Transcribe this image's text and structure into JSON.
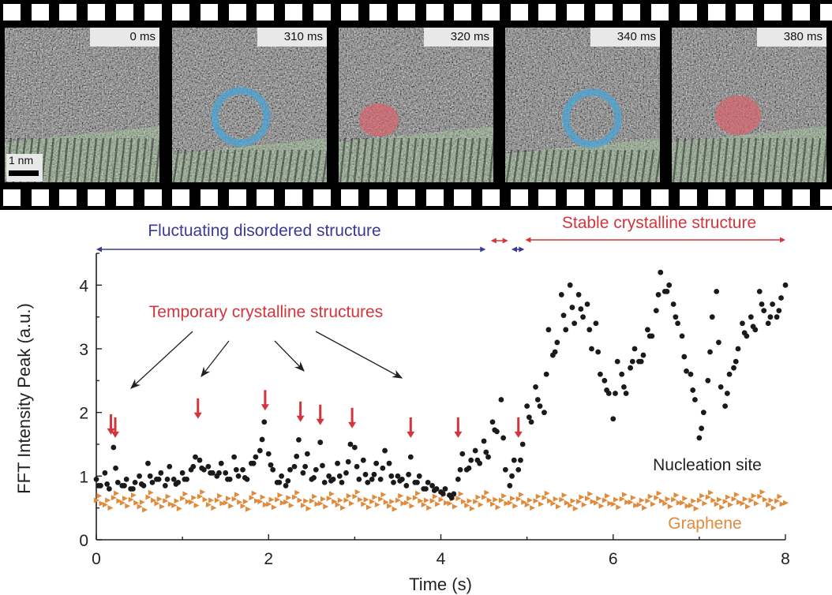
{
  "film_strip": {
    "frames": [
      {
        "label": "0 ms",
        "feature": "none"
      },
      {
        "label": "310 ms",
        "feature": "disordered-ring"
      },
      {
        "label": "320 ms",
        "feature": "crystalline-cluster"
      },
      {
        "label": "340 ms",
        "feature": "disordered-ring"
      },
      {
        "label": "380 ms",
        "feature": "crystalline-cluster"
      }
    ],
    "scale_bar_label": "1 nm",
    "colors": {
      "ring": "#4aa6d6",
      "cluster": "#e0606a",
      "lattice": "#a8d8a0"
    }
  },
  "chart_data": {
    "type": "scatter",
    "xlabel": "Time (s)",
    "ylabel": "FFT Intensity Peak (a.u.)",
    "xlim": [
      0,
      8
    ],
    "ylim": [
      0,
      4.5
    ],
    "xticks": [
      "0",
      "2",
      "4",
      "6",
      "8"
    ],
    "yticks": [
      "0",
      "1",
      "2",
      "3",
      "4"
    ],
    "grid": false,
    "series": [
      {
        "name": "Nucleation site",
        "color": "#1a1a1a",
        "marker": "circle",
        "points": [
          [
            0.0,
            0.95
          ],
          [
            0.05,
            0.85
          ],
          [
            0.1,
            1.05
          ],
          [
            0.15,
            0.8
          ],
          [
            0.2,
            1.45
          ],
          [
            0.25,
            0.9
          ],
          [
            0.3,
            0.85
          ],
          [
            0.35,
            0.95
          ],
          [
            0.4,
            0.8
          ],
          [
            0.45,
            0.9
          ],
          [
            0.5,
            1.0
          ],
          [
            0.55,
            0.85
          ],
          [
            0.6,
            1.2
          ],
          [
            0.65,
            0.9
          ],
          [
            0.7,
            0.95
          ],
          [
            0.75,
            1.05
          ],
          [
            0.8,
            0.85
          ],
          [
            0.85,
            1.15
          ],
          [
            0.9,
            0.95
          ],
          [
            0.95,
            0.9
          ],
          [
            1.0,
            1.05
          ],
          [
            1.05,
            0.95
          ],
          [
            1.1,
            1.1
          ],
          [
            1.15,
            1.3
          ],
          [
            1.2,
            1.25
          ],
          [
            1.25,
            1.1
          ],
          [
            1.3,
            1.15
          ],
          [
            1.35,
            1.05
          ],
          [
            1.4,
            1.0
          ],
          [
            1.45,
            1.2
          ],
          [
            1.5,
            1.05
          ],
          [
            1.55,
            0.95
          ],
          [
            1.6,
            1.3
          ],
          [
            1.65,
            1.0
          ],
          [
            1.7,
            1.1
          ],
          [
            1.75,
            0.95
          ],
          [
            1.8,
            1.2
          ],
          [
            1.85,
            1.3
          ],
          [
            1.9,
            1.4
          ],
          [
            1.95,
            1.85
          ],
          [
            2.0,
            1.35
          ],
          [
            2.05,
            1.1
          ],
          [
            2.1,
            0.9
          ],
          [
            2.15,
            1.0
          ],
          [
            2.2,
            0.85
          ],
          [
            2.25,
            1.1
          ],
          [
            2.3,
            1.15
          ],
          [
            2.35,
            1.57
          ],
          [
            2.4,
            1.05
          ],
          [
            2.45,
            1.35
          ],
          [
            2.5,
            0.95
          ],
          [
            2.55,
            1.1
          ],
          [
            2.6,
            1.53
          ],
          [
            2.65,
            0.9
          ],
          [
            2.7,
            1.0
          ],
          [
            2.75,
            0.95
          ],
          [
            2.8,
            1.2
          ],
          [
            2.85,
            0.9
          ],
          [
            2.9,
            1.05
          ],
          [
            2.95,
            1.5
          ],
          [
            3.0,
            1.45
          ],
          [
            3.05,
            0.95
          ],
          [
            3.1,
            1.25
          ],
          [
            3.15,
            0.9
          ],
          [
            3.2,
            0.95
          ],
          [
            3.25,
            1.2
          ],
          [
            3.3,
            0.95
          ],
          [
            3.35,
            1.4
          ],
          [
            3.4,
            1.2
          ],
          [
            3.45,
            0.9
          ],
          [
            3.5,
            1.0
          ],
          [
            3.55,
            0.95
          ],
          [
            3.6,
            0.85
          ],
          [
            3.65,
            1.3
          ],
          [
            3.7,
            0.9
          ],
          [
            3.75,
            1.0
          ],
          [
            3.8,
            0.8
          ],
          [
            3.85,
            0.9
          ],
          [
            3.9,
            0.85
          ],
          [
            3.95,
            0.8
          ],
          [
            4.0,
            0.75
          ],
          [
            4.05,
            0.8
          ],
          [
            4.1,
            0.7
          ],
          [
            4.15,
            0.72
          ],
          [
            4.2,
            0.95
          ],
          [
            4.25,
            1.35
          ],
          [
            4.3,
            1.1
          ],
          [
            4.35,
            1.25
          ],
          [
            4.4,
            1.4
          ],
          [
            4.45,
            1.2
          ],
          [
            4.5,
            1.55
          ],
          [
            4.55,
            1.3
          ],
          [
            4.6,
            1.85
          ],
          [
            4.65,
            1.7
          ],
          [
            4.7,
            2.2
          ],
          [
            4.75,
            1.1
          ],
          [
            4.8,
            0.85
          ],
          [
            4.85,
            1.25
          ],
          [
            4.9,
            1.1
          ],
          [
            4.95,
            1.5
          ],
          [
            5.0,
            2.1
          ],
          [
            5.05,
            1.85
          ],
          [
            5.1,
            2.4
          ],
          [
            5.15,
            2.1
          ],
          [
            5.2,
            2.0
          ],
          [
            5.25,
            3.3
          ],
          [
            5.3,
            2.9
          ],
          [
            5.35,
            3.1
          ],
          [
            5.4,
            3.85
          ],
          [
            5.45,
            3.3
          ],
          [
            5.5,
            4.0
          ],
          [
            5.55,
            3.4
          ],
          [
            5.6,
            3.85
          ],
          [
            5.65,
            3.5
          ],
          [
            5.7,
            3.7
          ],
          [
            5.75,
            3.0
          ],
          [
            5.8,
            3.4
          ],
          [
            5.85,
            2.6
          ],
          [
            5.9,
            2.5
          ],
          [
            5.95,
            2.3
          ],
          [
            6.0,
            1.9
          ],
          [
            6.05,
            2.8
          ],
          [
            6.1,
            2.6
          ],
          [
            6.15,
            2.3
          ],
          [
            6.2,
            2.7
          ],
          [
            6.25,
            3.0
          ],
          [
            6.3,
            2.8
          ],
          [
            6.35,
            2.9
          ],
          [
            6.4,
            3.3
          ],
          [
            6.45,
            3.2
          ],
          [
            6.5,
            3.6
          ],
          [
            6.55,
            4.2
          ],
          [
            6.6,
            3.9
          ],
          [
            6.65,
            4.0
          ],
          [
            6.7,
            3.7
          ],
          [
            6.75,
            3.4
          ],
          [
            6.8,
            3.2
          ],
          [
            6.85,
            2.65
          ],
          [
            6.9,
            2.6
          ],
          [
            6.95,
            2.2
          ],
          [
            7.0,
            1.6
          ],
          [
            7.05,
            2.0
          ],
          [
            7.1,
            2.5
          ],
          [
            7.15,
            3.5
          ],
          [
            7.2,
            3.9
          ],
          [
            7.25,
            2.4
          ],
          [
            7.3,
            2.1
          ],
          [
            7.35,
            2.6
          ],
          [
            7.4,
            2.7
          ],
          [
            7.45,
            3.0
          ],
          [
            7.5,
            3.4
          ],
          [
            7.55,
            3.2
          ],
          [
            7.6,
            3.5
          ],
          [
            7.65,
            3.3
          ],
          [
            7.7,
            3.9
          ],
          [
            7.75,
            3.6
          ],
          [
            7.8,
            3.4
          ],
          [
            7.85,
            3.7
          ],
          [
            7.9,
            3.5
          ],
          [
            7.95,
            3.8
          ],
          [
            8.0,
            4.0
          ]
        ]
      },
      {
        "name": "Graphene",
        "color": "#e08a3c",
        "marker": "triangle",
        "points": [
          [
            0.0,
            0.62
          ],
          [
            0.1,
            0.55
          ],
          [
            0.2,
            0.66
          ],
          [
            0.3,
            0.58
          ],
          [
            0.4,
            0.63
          ],
          [
            0.5,
            0.52
          ],
          [
            0.6,
            0.67
          ],
          [
            0.7,
            0.57
          ],
          [
            0.8,
            0.61
          ],
          [
            0.9,
            0.54
          ],
          [
            1.0,
            0.65
          ],
          [
            1.1,
            0.59
          ],
          [
            1.2,
            0.68
          ],
          [
            1.3,
            0.55
          ],
          [
            1.4,
            0.62
          ],
          [
            1.5,
            0.58
          ],
          [
            1.6,
            0.64
          ],
          [
            1.7,
            0.53
          ],
          [
            1.8,
            0.66
          ],
          [
            1.9,
            0.6
          ],
          [
            2.0,
            0.56
          ],
          [
            2.1,
            0.63
          ],
          [
            2.2,
            0.59
          ],
          [
            2.3,
            0.67
          ],
          [
            2.4,
            0.54
          ],
          [
            2.5,
            0.61
          ],
          [
            2.6,
            0.57
          ],
          [
            2.7,
            0.65
          ],
          [
            2.8,
            0.55
          ],
          [
            2.9,
            0.62
          ],
          [
            3.0,
            0.68
          ],
          [
            3.1,
            0.56
          ],
          [
            3.2,
            0.6
          ],
          [
            3.3,
            0.64
          ],
          [
            3.4,
            0.53
          ],
          [
            3.5,
            0.62
          ],
          [
            3.6,
            0.58
          ],
          [
            3.7,
            0.66
          ],
          [
            3.8,
            0.55
          ],
          [
            3.9,
            0.61
          ],
          [
            4.0,
            0.63
          ],
          [
            4.1,
            0.57
          ],
          [
            4.2,
            0.65
          ],
          [
            4.3,
            0.54
          ],
          [
            4.4,
            0.6
          ],
          [
            4.5,
            0.67
          ],
          [
            4.6,
            0.56
          ],
          [
            4.7,
            0.62
          ],
          [
            4.8,
            0.58
          ],
          [
            4.9,
            0.64
          ],
          [
            5.0,
            0.55
          ],
          [
            5.1,
            0.61
          ],
          [
            5.2,
            0.66
          ],
          [
            5.3,
            0.57
          ],
          [
            5.4,
            0.63
          ],
          [
            5.5,
            0.54
          ],
          [
            5.6,
            0.6
          ],
          [
            5.7,
            0.65
          ],
          [
            5.8,
            0.58
          ],
          [
            5.9,
            0.62
          ],
          [
            6.0,
            0.56
          ],
          [
            6.1,
            0.64
          ],
          [
            6.2,
            0.59
          ],
          [
            6.3,
            0.55
          ],
          [
            6.4,
            0.61
          ],
          [
            6.5,
            0.66
          ],
          [
            6.6,
            0.57
          ],
          [
            6.7,
            0.63
          ],
          [
            6.8,
            0.58
          ],
          [
            6.9,
            0.54
          ],
          [
            7.0,
            0.62
          ],
          [
            7.1,
            0.67
          ],
          [
            7.2,
            0.56
          ],
          [
            7.3,
            0.6
          ],
          [
            7.4,
            0.64
          ],
          [
            7.5,
            0.57
          ],
          [
            7.6,
            0.62
          ],
          [
            7.7,
            0.68
          ],
          [
            7.8,
            0.55
          ],
          [
            7.9,
            0.61
          ],
          [
            8.0,
            0.58
          ]
        ]
      }
    ],
    "annotations": {
      "fluctuating": {
        "text": "Fluctuating disordered structure",
        "color": "#3a3a96",
        "range": [
          0,
          4.52
        ]
      },
      "stable": {
        "text": "Stable crystalline structure",
        "color": "#d4343c",
        "range": [
          4.98,
          8.0
        ]
      },
      "short_ranges": [
        {
          "range": [
            4.58,
            4.78
          ],
          "color": "#d4343c"
        },
        {
          "range": [
            4.82,
            4.97
          ],
          "color": "#3a3a96"
        }
      ],
      "temporary": {
        "text": "Temporary crystalline structures",
        "color": "#d4343c"
      },
      "nucleation_label": "Nucleation site",
      "graphene_label": "Graphene",
      "red_arrows": [
        [
          0.17,
          1.65
        ],
        [
          0.22,
          1.6
        ],
        [
          1.18,
          1.9
        ],
        [
          1.96,
          2.03
        ],
        [
          2.37,
          1.85
        ],
        [
          2.6,
          1.8
        ],
        [
          2.97,
          1.75
        ],
        [
          3.65,
          1.6
        ],
        [
          4.2,
          1.6
        ],
        [
          4.9,
          1.6
        ]
      ]
    }
  }
}
